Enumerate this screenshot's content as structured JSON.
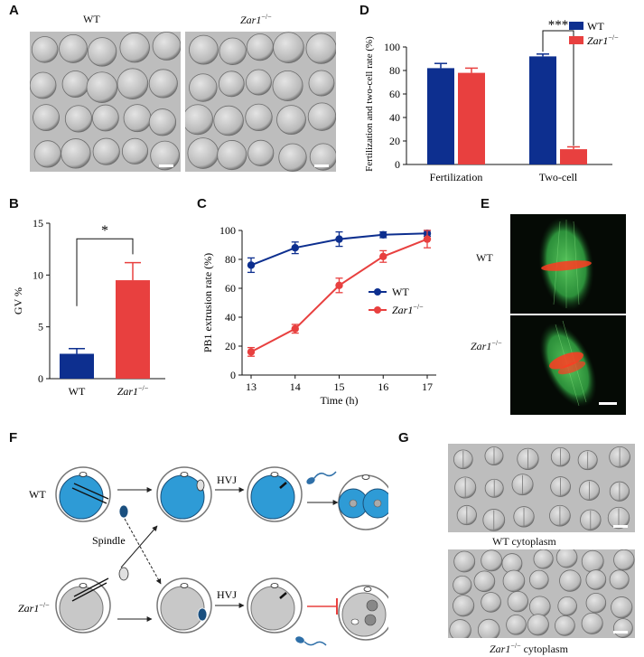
{
  "panels": {
    "A": {
      "label": "A",
      "captions": [
        "WT",
        "Zar1"
      ],
      "caption_sup": "−/−"
    },
    "B": {
      "label": "B",
      "chart_data": {
        "type": "bar",
        "categories": [
          "WT",
          "Zar1"
        ],
        "category_sup": "−/−",
        "values": [
          2.4,
          9.5
        ],
        "errors": [
          0.5,
          1.7
        ],
        "colors": [
          "#0d2f8f",
          "#e8403f"
        ],
        "ylabel": "GV %",
        "ylim": [
          0,
          15
        ],
        "yticks": [
          0,
          5,
          10,
          15
        ],
        "significance": "*"
      }
    },
    "C": {
      "label": "C",
      "chart_data": {
        "type": "line",
        "x": [
          13,
          14,
          15,
          16,
          17
        ],
        "xlabel": "Time (h)",
        "ylabel": "PB1 extrusion rate (%)",
        "ylim": [
          0,
          100
        ],
        "yticks": [
          0,
          20,
          40,
          60,
          80,
          100
        ],
        "series": [
          {
            "name": "WT",
            "values": [
              76,
              88,
              94,
              97,
              98
            ],
            "errors": [
              5,
              4,
              5,
              2,
              2
            ],
            "color": "#0d2f8f"
          },
          {
            "name": "Zar1",
            "name_sup": "−/−",
            "values": [
              16,
              32,
              62,
              82,
              94
            ],
            "errors": [
              3,
              3,
              5,
              4,
              6
            ],
            "color": "#e8403f"
          }
        ]
      }
    },
    "D": {
      "label": "D",
      "chart_data": {
        "type": "bar",
        "categories": [
          "Fertilization",
          "Two-cell"
        ],
        "series": [
          {
            "name": "WT",
            "values": [
              82,
              92
            ],
            "errors": [
              4,
              2
            ],
            "color": "#0d2f8f"
          },
          {
            "name": "Zar1",
            "name_sup": "−/−",
            "values": [
              78,
              13
            ],
            "errors": [
              4,
              2
            ],
            "color": "#e8403f"
          }
        ],
        "ylabel": "Fertilization and  two-cell rate (%)",
        "ylim": [
          0,
          100
        ],
        "yticks": [
          0,
          20,
          40,
          60,
          80,
          100
        ],
        "significance": "***",
        "legend": "top-right"
      }
    },
    "E": {
      "label": "E",
      "rows": [
        "WT",
        "Zar1"
      ],
      "row_sup": "−/−"
    },
    "F": {
      "label": "F",
      "row_labels": [
        "WT",
        "Zar1"
      ],
      "row_sup": "−/−",
      "spindle_label": "Spindle",
      "hvj_label": "HVJ"
    },
    "G": {
      "label": "G",
      "captions": [
        "WT cytoplasm",
        "Zar1"
      ],
      "caption_sup": "−/−",
      "caption_suffix": "cytoplasm"
    }
  },
  "colors": {
    "wt": "#0d2f8f",
    "mutant": "#e8403f",
    "oocyte_blue": "#2e9bd6",
    "oocyte_grey": "#c8c8c8",
    "spindle_green": "#3fae4a",
    "chromosome_red": "#ff3b22"
  }
}
